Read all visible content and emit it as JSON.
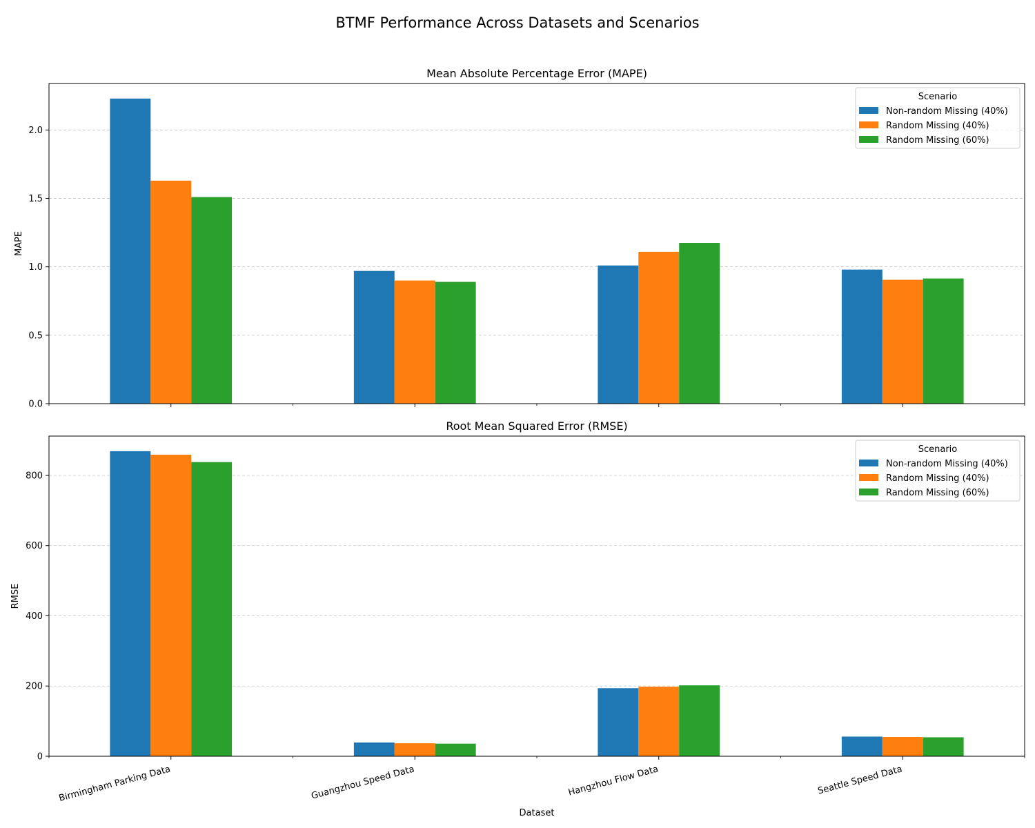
{
  "figure_title": "BTMF Performance Across Datasets and Scenarios",
  "xlabel": "Dataset",
  "colors": {
    "Non-random Missing (40%)": "#1f77b4",
    "Random Missing (40%)": "#ff7f0e",
    "Random Missing (60%)": "#2ca02c",
    "grid": "#b0b0b0",
    "legend_border": "#cccccc"
  },
  "chart_data": [
    {
      "type": "bar",
      "title": "Mean Absolute Percentage Error (MAPE)",
      "xlabel": "",
      "ylabel": "MAPE",
      "categories": [
        "Birmingham Parking Data",
        "Guangzhou Speed Data",
        "Hangzhou Flow Data",
        "Seattle Speed Data"
      ],
      "series": [
        {
          "name": "Non-random Missing (40%)",
          "values": [
            2.23,
            0.97,
            1.01,
            0.98
          ]
        },
        {
          "name": "Random Missing (40%)",
          "values": [
            1.63,
            0.9,
            1.11,
            0.905
          ]
        },
        {
          "name": "Random Missing (60%)",
          "values": [
            1.51,
            0.89,
            1.175,
            0.915
          ]
        }
      ],
      "ylim": [
        0,
        2.34
      ],
      "yticks": [
        0.0,
        0.5,
        1.0,
        1.5,
        2.0
      ],
      "ytick_labels": [
        "0.0",
        "0.5",
        "1.0",
        "1.5",
        "2.0"
      ],
      "grid": "y dashed",
      "legend": {
        "title": "Scenario",
        "placement": "top-right"
      }
    },
    {
      "type": "bar",
      "title": "Root Mean Squared Error (RMSE)",
      "xlabel": "Dataset",
      "ylabel": "RMSE",
      "categories": [
        "Birmingham Parking Data",
        "Guangzhou Speed Data",
        "Hangzhou Flow Data",
        "Seattle Speed Data"
      ],
      "series": [
        {
          "name": "Non-random Missing (40%)",
          "values": [
            869,
            39,
            194,
            56
          ]
        },
        {
          "name": "Random Missing (40%)",
          "values": [
            859,
            37,
            198,
            55
          ]
        },
        {
          "name": "Random Missing (60%)",
          "values": [
            838,
            36,
            202,
            54
          ]
        }
      ],
      "ylim": [
        0,
        912
      ],
      "yticks": [
        0,
        200,
        400,
        600,
        800
      ],
      "ytick_labels": [
        "0",
        "200",
        "400",
        "600",
        "800"
      ],
      "grid": "y dashed",
      "legend": {
        "title": "Scenario",
        "placement": "top-right"
      }
    }
  ]
}
